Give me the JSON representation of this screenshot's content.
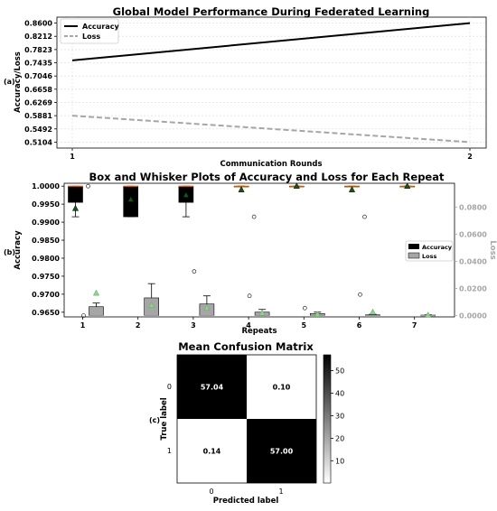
{
  "chart_data": [
    {
      "type": "line",
      "panel_label": "(a)",
      "title": "Global Model Performance During Federated Learning",
      "xlabel": "Communication Rounds",
      "ylabel": "Accuracy/Loss",
      "x": [
        1,
        2
      ],
      "xticks": [
        "1",
        "2"
      ],
      "yticks": [
        "0.5104",
        "0.5492",
        "0.5881",
        "0.6269",
        "0.6658",
        "0.7046",
        "0.7435",
        "0.7823",
        "0.8212",
        "0.8600"
      ],
      "ylim": [
        0.4929,
        0.8775
      ],
      "grid": true,
      "legend_position": "top-left",
      "series": [
        {
          "name": "Accuracy",
          "values": [
            0.7505,
            0.86
          ],
          "color": "#000000",
          "style": "solid"
        },
        {
          "name": "Loss",
          "values": [
            0.588,
            0.5104
          ],
          "color": "#a6a6a6",
          "style": "dashed"
        }
      ]
    },
    {
      "type": "box",
      "panel_label": "(b)",
      "title": "Box and Whisker Plots of Accuracy and Loss for Each Repeat",
      "xlabel": "Repeats",
      "ylabel_left": "Accuracy",
      "ylabel_right": "Loss",
      "categories": [
        "1",
        "2",
        "3",
        "4",
        "5",
        "6",
        "7"
      ],
      "left_ticks": [
        "0.9650",
        "0.9700",
        "0.9750",
        "0.9800",
        "0.9850",
        "0.9900",
        "0.9950",
        "1.0000"
      ],
      "left_ylim": [
        0.9637,
        1.0008
      ],
      "right_ticks": [
        "0.0000",
        "0.0200",
        "0.0400",
        "0.0600",
        "0.0800"
      ],
      "right_ylim": [
        -0.001,
        0.0975
      ],
      "legend_position": "right",
      "series": [
        {
          "name": "Accuracy",
          "color": "#000000",
          "boxes": [
            {
              "whislo": 0.9915,
              "q1": 0.9955,
              "med": 1.0,
              "q3": 1.0,
              "whishi": 1.0,
              "mean": 0.9938,
              "fliers": [
                1.0
              ]
            },
            {
              "whislo": 0.9915,
              "q1": 0.9915,
              "med": 1.0,
              "q3": 1.0,
              "whishi": 1.0,
              "mean": 0.9963,
              "fliers": []
            },
            {
              "whislo": 0.9915,
              "q1": 0.9955,
              "med": 1.0,
              "q3": 1.0,
              "whishi": 1.0,
              "mean": 0.9975,
              "fliers": []
            },
            {
              "whislo": 1.0,
              "q1": 1.0,
              "med": 1.0,
              "q3": 1.0,
              "whishi": 1.0,
              "mean": 0.999,
              "fliers": [
                0.9915
              ]
            },
            {
              "whislo": 1.0,
              "q1": 1.0,
              "med": 1.0,
              "q3": 1.0,
              "whishi": 1.0,
              "mean": 1.0,
              "fliers": []
            },
            {
              "whislo": 1.0,
              "q1": 1.0,
              "med": 1.0,
              "q3": 1.0,
              "whishi": 1.0,
              "mean": 0.999,
              "fliers": [
                0.9915
              ]
            },
            {
              "whislo": 1.0,
              "q1": 1.0,
              "med": 1.0,
              "q3": 1.0,
              "whishi": 1.0,
              "mean": 1.0,
              "fliers": []
            }
          ]
        },
        {
          "name": "Loss",
          "color": "#a6a6a6",
          "boxes": [
            {
              "whislo": 0.0,
              "q1": 0.0,
              "med": 0.0,
              "q3": 0.0065,
              "whishi": 0.0092,
              "mean": 0.0165,
              "fliers": [
                0.0
              ]
            },
            {
              "whislo": 0.0,
              "q1": 0.0,
              "med": 0.0,
              "q3": 0.013,
              "whishi": 0.0235,
              "mean": 0.0075,
              "fliers": []
            },
            {
              "whislo": 0.0,
              "q1": 0.0,
              "med": 0.0,
              "q3": 0.0085,
              "whishi": 0.0145,
              "mean": 0.0055,
              "fliers": [
                0.0325
              ]
            },
            {
              "whislo": 0.0,
              "q1": 0.0,
              "med": 0.0,
              "q3": 0.0025,
              "whishi": 0.0045,
              "mean": 0.0018,
              "fliers": [
                0.0145
              ]
            },
            {
              "whislo": 0.0,
              "q1": 0.0,
              "med": 0.0,
              "q3": 0.0015,
              "whishi": 0.0025,
              "mean": 0.0008,
              "fliers": [
                0.0055
              ]
            },
            {
              "whislo": 0.0,
              "q1": 0.0,
              "med": 0.0,
              "q3": 0.0005,
              "whishi": 0.001,
              "mean": 0.0025,
              "fliers": [
                0.0155
              ]
            },
            {
              "whislo": 0.0,
              "q1": 0.0,
              "med": 0.0,
              "q3": 0.0003,
              "whishi": 0.0005,
              "mean": 0.0003,
              "fliers": []
            }
          ]
        }
      ]
    },
    {
      "type": "heatmap",
      "panel_label": "(c)",
      "title": "Mean Confusion Matrix",
      "xlabel": "Predicted label",
      "ylabel": "True label",
      "xticks": [
        "0",
        "1"
      ],
      "yticks": [
        "0",
        "1"
      ],
      "values": [
        [
          "57.04",
          "0.10"
        ],
        [
          "0.14",
          "57.00"
        ]
      ],
      "colorbar_ticks": [
        "10",
        "20",
        "30",
        "40",
        "50"
      ],
      "colorbar_range": [
        0.1,
        57.04
      ],
      "colormap": "white-to-black"
    }
  ]
}
